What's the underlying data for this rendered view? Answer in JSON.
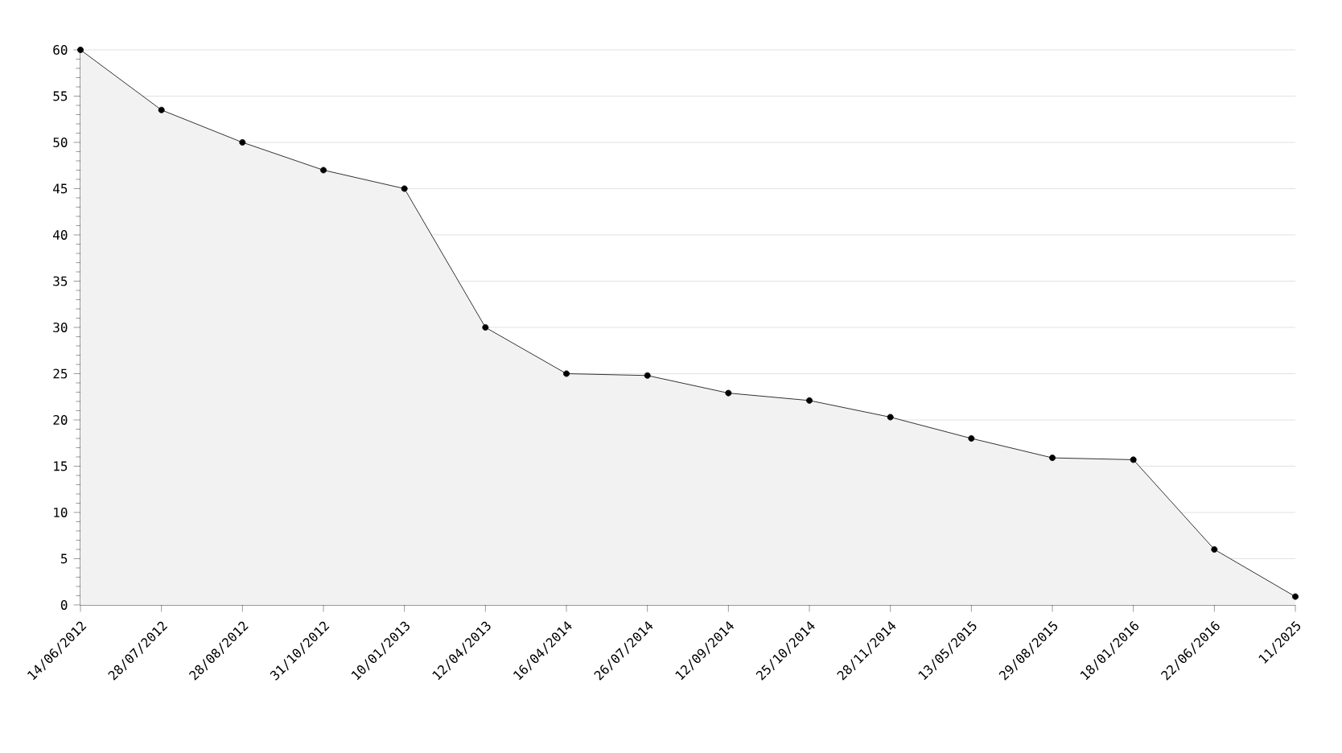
{
  "chart_data": {
    "type": "area",
    "categories": [
      "14/06/2012",
      "28/07/2012",
      "28/08/2012",
      "31/10/2012",
      "10/01/2013",
      "12/04/2013",
      "16/04/2014",
      "26/07/2014",
      "12/09/2014",
      "25/10/2014",
      "28/11/2014",
      "13/05/2015",
      "29/08/2015",
      "18/01/2016",
      "22/06/2016",
      "11/2025"
    ],
    "values": [
      60,
      53.5,
      50,
      47,
      45,
      30,
      25,
      24.8,
      22.9,
      22.1,
      20.3,
      18,
      15.9,
      15.7,
      6,
      0.9
    ],
    "color": "#f2f2f2",
    "ylim": [
      0,
      60
    ],
    "yticks": [
      0,
      5,
      10,
      15,
      20,
      25,
      30,
      35,
      40,
      45,
      50,
      55,
      60
    ],
    "grid": "y",
    "marker": "circle",
    "line_style": "solid"
  }
}
